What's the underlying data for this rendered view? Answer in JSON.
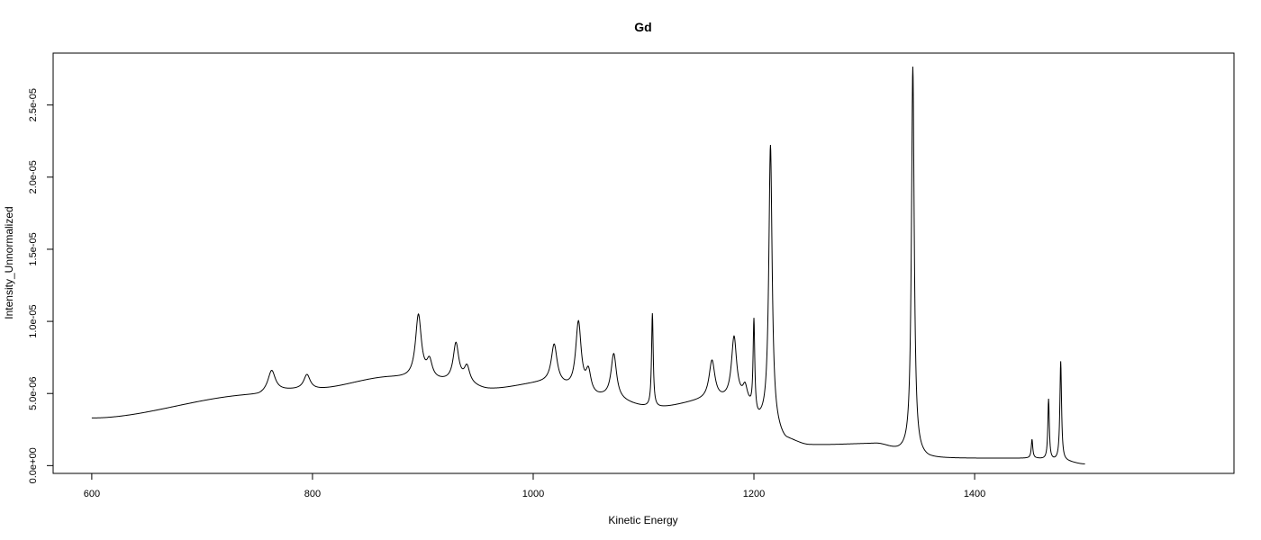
{
  "chart_data": {
    "type": "line",
    "title": "Gd",
    "xlabel": "Kinetic Energy",
    "ylabel": "Intensity_Unnormalized",
    "xlim": [
      565,
      1635
    ],
    "ylim": [
      -5.4e-07,
      2.86e-05
    ],
    "xticks": [
      600,
      800,
      1000,
      1200,
      1400
    ],
    "xtick_labels": [
      "600",
      "800",
      "1000",
      "1200",
      "1400"
    ],
    "yticks": [
      0,
      5e-06,
      1e-05,
      1.5e-05,
      2e-05,
      2.5e-05
    ],
    "ytick_labels": [
      "0.0e+00",
      "5.0e-06",
      "1.0e-05",
      "1.5e-05",
      "2.0e-05",
      "2.5e-05"
    ],
    "grid": false,
    "legend": "none",
    "x_range": [
      600,
      1500
    ],
    "baseline": [
      [
        600,
        3.3e-06
      ],
      [
        750,
        4.9e-06
      ],
      [
        765,
        5.2e-06
      ],
      [
        800,
        5.3e-06
      ],
      [
        870,
        6.1e-06
      ],
      [
        930,
        5.8e-06
      ],
      [
        960,
        5.3e-06
      ],
      [
        1010,
        5.7e-06
      ],
      [
        1060,
        4.7e-06
      ],
      [
        1110,
        4e-06
      ],
      [
        1160,
        4.5e-06
      ],
      [
        1190,
        4.5e-06
      ],
      [
        1205,
        3e-06
      ],
      [
        1213,
        3e-06
      ],
      [
        1230,
        1.7e-06
      ],
      [
        1250,
        1.4e-06
      ],
      [
        1310,
        1.5e-06
      ],
      [
        1335,
        1e-06
      ],
      [
        1360,
        5e-07
      ],
      [
        1450,
        5e-07
      ],
      [
        1480,
        3e-07
      ],
      [
        1500,
        1e-07
      ]
    ],
    "peaks": [
      {
        "x": 763,
        "height": 1.4e-06,
        "width": 4.0
      },
      {
        "x": 795,
        "height": 1e-06,
        "width": 3.5
      },
      {
        "x": 896,
        "height": 4.4e-06,
        "width": 3.2
      },
      {
        "x": 906,
        "height": 1.2e-06,
        "width": 3.0
      },
      {
        "x": 930,
        "height": 2.6e-06,
        "width": 3.0
      },
      {
        "x": 940,
        "height": 1.1e-06,
        "width": 3.0
      },
      {
        "x": 1019,
        "height": 2.7e-06,
        "width": 3.2
      },
      {
        "x": 1041,
        "height": 4.8e-06,
        "width": 3.0
      },
      {
        "x": 1050,
        "height": 1.5e-06,
        "width": 2.8
      },
      {
        "x": 1073,
        "height": 3.1e-06,
        "width": 3.0
      },
      {
        "x": 1108,
        "height": 6.5e-06,
        "width": 0.9
      },
      {
        "x": 1162,
        "height": 2.7e-06,
        "width": 3.2
      },
      {
        "x": 1182,
        "height": 4.3e-06,
        "width": 2.8
      },
      {
        "x": 1192,
        "height": 8e-07,
        "width": 2.2
      },
      {
        "x": 1200,
        "height": 6.4e-06,
        "width": 0.9
      },
      {
        "x": 1215,
        "height": 1.92e-05,
        "width": 1.8
      },
      {
        "x": 1344,
        "height": 2.68e-05,
        "width": 1.5
      },
      {
        "x": 1452,
        "height": 1.3e-06,
        "width": 0.8
      },
      {
        "x": 1467,
        "height": 4.2e-06,
        "width": 0.8
      },
      {
        "x": 1478,
        "height": 6.9e-06,
        "width": 0.9
      }
    ],
    "step": 0.25
  }
}
